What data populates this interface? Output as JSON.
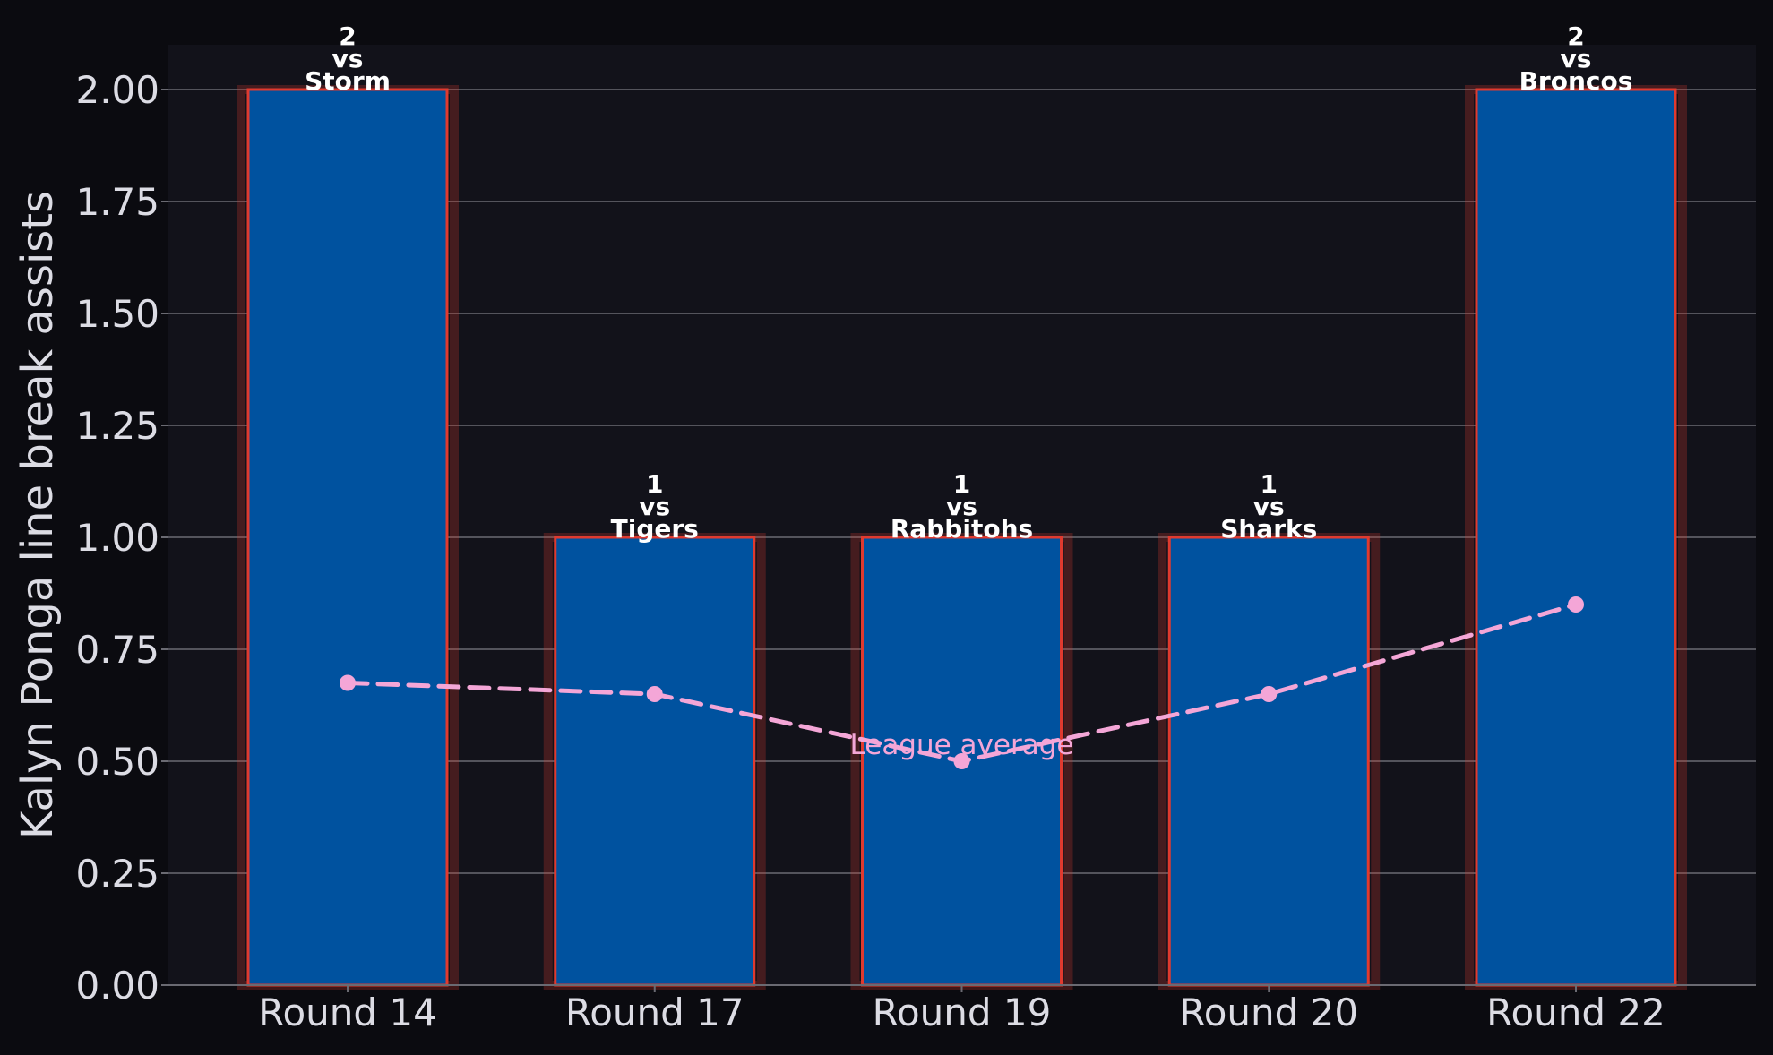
{
  "chart_data": {
    "type": "bar",
    "ylabel": "Kalyn Ponga line break assists",
    "xlabel": "",
    "ylim": [
      0,
      2.1
    ],
    "yticks": [
      "0.00",
      "0.25",
      "0.50",
      "0.75",
      "1.00",
      "1.25",
      "1.50",
      "1.75",
      "2.00"
    ],
    "grid": true,
    "categories": [
      "Round 14",
      "Round 17",
      "Round 19",
      "Round 20",
      "Round 22"
    ],
    "values": [
      2,
      1,
      1,
      1,
      2
    ],
    "bar_annotations": [
      [
        "2",
        "vs",
        "Storm"
      ],
      [
        "1",
        "vs",
        "Tigers"
      ],
      [
        "1",
        "vs",
        "Rabbitohs"
      ],
      [
        "1",
        "vs",
        "Sharks"
      ],
      [
        "2",
        "vs",
        "Broncos"
      ]
    ],
    "overlay_line": {
      "label": "League average",
      "values": [
        0.675,
        0.65,
        0.5,
        0.65,
        0.85
      ],
      "style": "dashed"
    },
    "colors": {
      "background": "#0b0b10",
      "plot_background": "#12121a",
      "bar_fill": "#00529f",
      "bar_edge": "#e03a2f",
      "line": "#f4a6d7",
      "grid": "#6a6a72",
      "text": "#dcdce4"
    }
  }
}
